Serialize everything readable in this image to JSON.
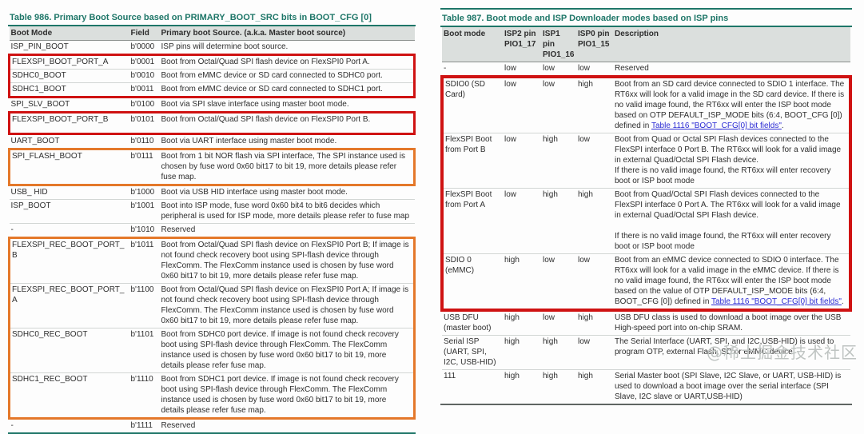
{
  "colors": {
    "teal": "#1e7668",
    "red": "#cf1212",
    "orange": "#e4782a",
    "link": "#2b2bd4",
    "header_bg": "#dbdfdd"
  },
  "watermark": "@稀土掘金技术社区",
  "left_table": {
    "title": "Table 986.  Primary Boot Source based on PRIMARY_BOOT_SRC bits in BOOT_CFG [0]",
    "columns": [
      "Boot Mode",
      "Field",
      "Primary boot Source. (a.k.a. Master boot source)"
    ],
    "groups": [
      {
        "highlight": "none",
        "rows": [
          [
            "ISP_PIN_BOOT",
            "b'0000",
            "ISP pins will determine boot source."
          ]
        ]
      },
      {
        "highlight": "red",
        "rows": [
          [
            "FLEXSPI_BOOT_PORT_A",
            "b'0001",
            "Boot from Octal/Quad SPI flash device on FlexSPI0 Port A."
          ],
          [
            "SDHC0_BOOT",
            "b'0010",
            "Boot from eMMC device or SD card connected to SDHC0 port."
          ],
          [
            "SDHC1_BOOT",
            "b'0011",
            "Boot from eMMC device or SD card connected to SDHC1 port."
          ]
        ]
      },
      {
        "highlight": "none",
        "rows": [
          [
            "SPI_SLV_BOOT",
            "b'0100",
            "Boot via SPI slave interface using master boot mode."
          ]
        ]
      },
      {
        "highlight": "red",
        "pad": true,
        "rows": [
          [
            "FLEXSPI_BOOT_PORT_B",
            "b'0101",
            "Boot from Octal/Quad SPI flash device on FlexSPI0 Port B."
          ]
        ]
      },
      {
        "highlight": "none",
        "rows": [
          [
            "UART_BOOT",
            "b'0110",
            "Boot via UART interface using master boot mode."
          ]
        ]
      },
      {
        "highlight": "orange",
        "rows": [
          [
            "SPI_FLASH_BOOT",
            "b'0111",
            "Boot from 1 bit NOR flash via SPI interface, The SPI instance used is chosen by fuse word 0x60 bit17 to bit 19, more details please refer fuse map."
          ]
        ]
      },
      {
        "highlight": "none",
        "rows": [
          [
            "USB_ HID",
            "b'1000",
            "Boot via USB HID interface using master boot mode."
          ],
          [
            "ISP_BOOT",
            "b'1001",
            "Boot into ISP mode, fuse word 0x60 bit4 to bit6 decides which peripheral is used for ISP mode, more details please refer to fuse map"
          ],
          [
            "-",
            "b'1010",
            "Reserved"
          ]
        ]
      },
      {
        "highlight": "orange",
        "rows": [
          [
            "FLEXSPI_REC_BOOT_PORT_B",
            "b'1011",
            "Boot from Octal/Quad SPI flash device on FlexSPI0 Port B; If image is not found check recovery boot using SPI-flash device through FlexComm. The FlexComm instance used is chosen by fuse word 0x60 bit17 to bit 19, more details please refer fuse map."
          ],
          [
            "FLEXSPI_REC_BOOT_PORT_A",
            "b'1100",
            "Boot from Octal/Quad SPI flash device on FlexSPI0 Port A; If image is not found check recovery boot using SPI-flash device through FlexComm. The FlexComm instance used is chosen by fuse word 0x60 bit17 to bit 19, more details please refer fuse map."
          ],
          [
            "SDHC0_REC_BOOT",
            "b'1101",
            "Boot from SDHC0 port device. If image is not found check recovery boot using SPI-flash device through FlexComm. The FlexComm instance used is chosen by fuse word 0x60 bit17 to bit 19, more details please refer fuse map."
          ],
          [
            "SDHC1_REC_BOOT",
            "b'1110",
            "Boot from SDHC1 port device. If image is not found check recovery boot using SPI-flash device through FlexComm. The FlexComm instance used is chosen by fuse word 0x60 bit17 to bit 19, more details please refer fuse map."
          ]
        ]
      },
      {
        "highlight": "none",
        "rows": [
          [
            "-",
            "b'1111",
            "Reserved"
          ]
        ]
      }
    ]
  },
  "right_table": {
    "title": "Table 987.  Boot mode and ISP Downloader modes based on ISP pins",
    "columns": [
      "Boot mode",
      "ISP2 pin\nPIO1_17",
      "ISP1 pin\nPIO1_16",
      "ISP0 pin\nPIO1_15",
      "Description"
    ],
    "groups": [
      {
        "highlight": "none",
        "rows": [
          [
            "-",
            "low",
            "low",
            "low",
            "Reserved"
          ]
        ]
      },
      {
        "highlight": "red-big",
        "rows": [
          [
            "SDIO0 (SD Card)",
            "low",
            "low",
            "high",
            [
              {
                "text": "Boot from an SD card device connected to SDIO 1 interface. The RT6xx will look for a valid image in the SD card device. If there is no valid image found, the RT6xx will enter the ISP boot mode based on OTP DEFAULT_ISP_MODE bits (6:4, BOOT_CFG [0]) defined in "
              },
              {
                "text": "Table 1116 \"BOOT_CFG[0] bit fields\"",
                "link": true
              },
              {
                "text": "."
              }
            ]
          ],
          [
            "FlexSPI Boot from Port B",
            "low",
            "high",
            "low",
            "Boot from Quad or Octal SPI Flash devices connected to the FlexSPI interface 0 Port B. The RT6xx will look for a valid image in external Quad/Octal SPI Flash device.\nIf there is no valid image found, the RT6xx will enter recovery boot or ISP boot mode"
          ],
          [
            "FlexSPI Boot from Port A",
            "low",
            "high",
            "high",
            "Boot from Quad/Octal SPI Flash devices connected to the FlexSPI interface 0 Port A. The RT6xx will look for a valid image in external Quad/Octal SPI Flash device.\n\nIf there is no valid image found, the RT6xx will enter recovery boot or ISP boot mode"
          ],
          [
            "SDIO 0 (eMMC)",
            "high",
            "low",
            "low",
            [
              {
                "text": "Boot from an eMMC device connected to SDIO 0 interface. The RT6xx will look for a valid image in the eMMC device. If there is no valid image found, the RT6xx will enter the ISP boot mode based on the value of OTP DEFAULT_ISP_MODE bits (6:4, BOOT_CFG [0]) defined in "
              },
              {
                "text": "Table 1116 \"BOOT_CFG[0] bit fields\"",
                "link": true
              },
              {
                "text": "."
              }
            ]
          ]
        ]
      },
      {
        "highlight": "none",
        "rows": [
          [
            "USB DFU (master boot)",
            "high",
            "low",
            "high",
            "USB DFU class is used to download a boot image over the USB High-speed port into on-chip SRAM."
          ],
          [
            "Serial ISP (UART, SPI, I2C, USB-HID)",
            "high",
            "high",
            "low",
            "The Serial Interface (UART, SPI, and I2C,USB-HID) is used to program OTP, external Flash, SD or eMMC device"
          ],
          [
            "111",
            "high",
            "high",
            "high",
            "Serial Master boot (SPI Slave, I2C Slave, or UART, USB-HID) is used to download a boot image over the serial interface (SPI Slave, I2C slave or UART,USB-HID)"
          ]
        ]
      }
    ]
  }
}
